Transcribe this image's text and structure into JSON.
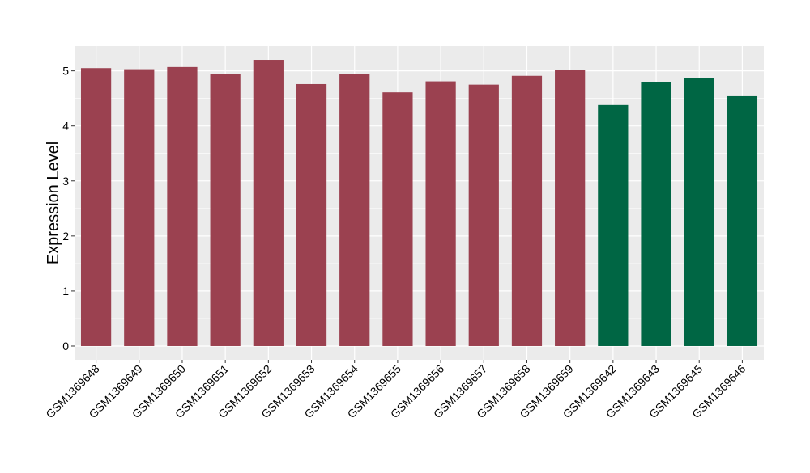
{
  "chart_data": {
    "type": "bar",
    "title": "",
    "xlabel": "",
    "ylabel": "Expression Level",
    "ylim": [
      -0.25,
      5.45
    ],
    "yticks": [
      0,
      1,
      2,
      3,
      4,
      5
    ],
    "grid": true,
    "legend": "none",
    "panel_background": "#ebebeb",
    "grid_color": "#ffffff",
    "categories": [
      "GSM1369648",
      "GSM1369649",
      "GSM1369650",
      "GSM1369651",
      "GSM1369652",
      "GSM1369653",
      "GSM1369654",
      "GSM1369655",
      "GSM1369656",
      "GSM1369657",
      "GSM1369658",
      "GSM1369659",
      "GSM1369642",
      "GSM1369643",
      "GSM1369645",
      "GSM1369646"
    ],
    "values": [
      5.05,
      5.03,
      5.07,
      4.95,
      5.2,
      4.76,
      4.95,
      4.61,
      4.81,
      4.75,
      4.91,
      5.01,
      4.38,
      4.79,
      4.87,
      4.54
    ],
    "colors": [
      "#9b4150",
      "#9b4150",
      "#9b4150",
      "#9b4150",
      "#9b4150",
      "#9b4150",
      "#9b4150",
      "#9b4150",
      "#9b4150",
      "#9b4150",
      "#9b4150",
      "#9b4150",
      "#006644",
      "#006644",
      "#006644",
      "#006644"
    ]
  }
}
